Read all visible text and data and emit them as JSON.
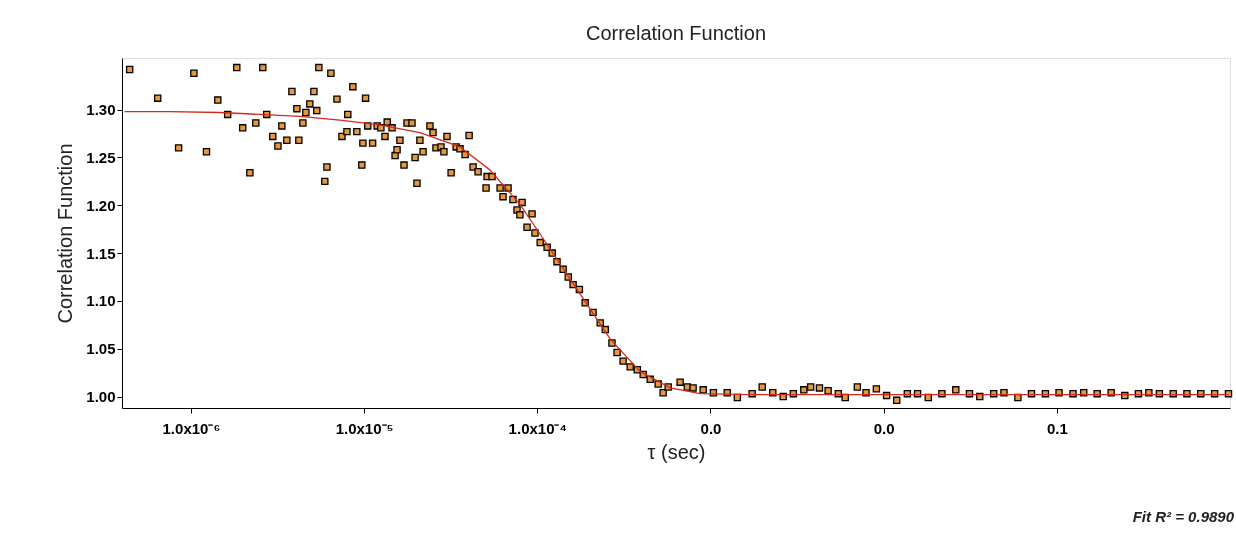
{
  "chart_data": {
    "type": "scatter",
    "title": "Correlation Function",
    "xlabel": "τ (sec)",
    "ylabel": "Correlation Function",
    "annotations": [
      "Fit R² = 0.9890"
    ],
    "log": "x",
    "grid": false,
    "marker": "square",
    "xlim": [
      4e-07,
      1
    ],
    "ylim": [
      0.988,
      1.354
    ],
    "xticks": [
      {
        "value": 1e-06,
        "label": "1.0x10⁻⁶"
      },
      {
        "value": 1e-05,
        "label": "1.0x10⁻⁵"
      },
      {
        "value": 0.0001,
        "label": "1.0x10⁻⁴"
      },
      {
        "value": 0.001,
        "label": "0.0"
      },
      {
        "value": 0.01,
        "label": "0.0"
      },
      {
        "value": 0.1,
        "label": "0.1"
      }
    ],
    "yticks": [
      {
        "value": 1.0,
        "label": "1.00"
      },
      {
        "value": 1.05,
        "label": "1.05"
      },
      {
        "value": 1.1,
        "label": "1.10"
      },
      {
        "value": 1.15,
        "label": "1.15"
      },
      {
        "value": 1.2,
        "label": "1.20"
      },
      {
        "value": 1.25,
        "label": "1.25"
      },
      {
        "value": 1.3,
        "label": "1.30"
      }
    ],
    "series": [
      {
        "color": "#e8983c",
        "x": [
          4.43e-07,
          6.43e-07,
          8.49e-07,
          1.04e-06,
          1.23e-06,
          1.43e-06,
          1.63e-06,
          1.84e-06,
          1.99e-06,
          2.19e-06,
          2.37e-06,
          2.6e-06,
          2.74e-06,
          2.97e-06,
          3.18e-06,
          3.35e-06,
          3.58e-06,
          3.83e-06,
          4.09e-06,
          4.2e-06,
          4.43e-06,
          4.61e-06,
          4.86e-06,
          5.13e-06,
          5.33e-06,
          5.48e-06,
          5.93e-06,
          6.1e-06,
          6.43e-06,
          6.97e-06,
          7.45e-06,
          7.96e-06,
          8.05e-06,
          8.61e-06,
          9.08e-06,
          9.7e-06,
          9.84e-06,
          1.02e-05,
          1.05e-05,
          1.12e-05,
          1.19e-05,
          1.25e-05,
          1.32e-05,
          1.36e-05,
          1.45e-05,
          1.51e-05,
          1.55e-05,
          1.61e-05,
          1.7e-05,
          1.77e-05,
          1.89e-05,
          1.97e-05,
          2.02e-05,
          2.1e-05,
          2.19e-05,
          2.4e-05,
          2.5e-05,
          2.6e-05,
          2.78e-05,
          2.89e-05,
          3.01e-05,
          3.18e-05,
          3.4e-05,
          3.58e-05,
          3.83e-05,
          4.04e-05,
          4.26e-05,
          4.55e-05,
          5.13e-05,
          5.48e-05,
          5.06e-05,
          6.1e-05,
          6.78e-05,
          6.34e-05,
          7.24e-05,
          8.17e-05,
          7.64e-05,
          7.94e-05,
          9.33e-05,
          8.73e-05,
          9.7e-05,
          0.000104,
          0.000114,
          0.000122,
          0.00013,
          0.000141,
          0.000151,
          0.000161,
          0.000175,
          0.000189,
          0.00021,
          0.000231,
          0.000247,
          0.00027,
          0.000289,
          0.000313,
          0.000344,
          0.000378,
          0.000409,
          0.000449,
          0.000499,
          0.000533,
          0.00057,
          0.000668,
          0.000735,
          0.000794,
          0.000908,
          0.00104,
          0.00125,
          0.00143,
          0.00174,
          0.00199,
          0.00229,
          0.00263,
          0.00301,
          0.00346,
          0.00379,
          0.00426,
          0.00478,
          0.00547,
          0.006,
          0.00705,
          0.00791,
          0.00908,
          0.0104,
          0.0119,
          0.0137,
          0.0157,
          0.0181,
          0.0217,
          0.0261,
          0.0313,
          0.0359,
          0.0432,
          0.0495,
          0.0596,
          0.0714,
          0.0859,
          0.103,
          0.124,
          0.143,
          0.171,
          0.206,
          0.247,
          0.296,
          0.34,
          0.391,
          0.47,
          0.564,
          0.678,
          0.815,
          0.98
        ],
        "values": [
          1.342,
          1.312,
          1.26,
          1.338,
          1.256,
          1.31,
          1.295,
          1.344,
          1.281,
          1.234,
          1.286,
          1.344,
          1.295,
          1.272,
          1.262,
          1.283,
          1.268,
          1.319,
          1.301,
          1.268,
          1.286,
          1.297,
          1.306,
          1.319,
          1.299,
          1.344,
          1.225,
          1.24,
          1.338,
          1.311,
          1.272,
          1.277,
          1.295,
          1.324,
          1.277,
          1.242,
          1.265,
          1.312,
          1.283,
          1.265,
          1.283,
          1.281,
          1.272,
          1.287,
          1.281,
          1.252,
          1.258,
          1.268,
          1.242,
          1.286,
          1.286,
          1.25,
          1.223,
          1.268,
          1.256,
          1.283,
          1.276,
          1.26,
          1.261,
          1.256,
          1.272,
          1.234,
          1.261,
          1.259,
          1.253,
          1.273,
          1.24,
          1.235,
          1.23,
          1.23,
          1.218,
          1.218,
          1.218,
          1.209,
          1.206,
          1.203,
          1.195,
          1.19,
          1.191,
          1.177,
          1.171,
          1.161,
          1.156,
          1.15,
          1.141,
          1.133,
          1.125,
          1.117,
          1.112,
          1.098,
          1.088,
          1.077,
          1.07,
          1.056,
          1.046,
          1.037,
          1.031,
          1.028,
          1.023,
          1.018,
          1.013,
          1.004,
          1.01,
          1.015,
          1.01,
          1.009,
          1.007,
          1.004,
          1.004,
          0.999,
          1.003,
          1.01,
          1.004,
          1.0,
          1.003,
          1.007,
          1.01,
          1.009,
          1.006,
          1.003,
          0.999,
          1.01,
          1.004,
          1.008,
          1.001,
          0.996,
          1.003,
          1.003,
          0.999,
          1.003,
          1.007,
          1.003,
          1.0,
          1.003,
          1.004,
          0.999,
          1.003,
          1.003,
          1.004,
          1.003,
          1.004,
          1.003,
          1.004,
          1.001,
          1.003,
          1.004,
          1.003,
          1.003,
          1.003,
          1.003,
          1.003,
          1.003
        ]
      },
      {
        "type": "line",
        "color": "#d42a1e",
        "marker": "none",
        "x": [
          4.14e-07,
          7.53e-07,
          1.47e-06,
          2.5e-06,
          4.26e-06,
          7.24e-06,
          1.23e-05,
          2.1e-05,
          3.58e-05,
          5.33e-05,
          7.94e-05,
          0.000119,
          0.000177,
          0.000264,
          0.000393,
          0.000586,
          0.000873,
          0.0017,
          0.98
        ],
        "values": [
          1.298,
          1.298,
          1.297,
          1.295,
          1.293,
          1.289,
          1.284,
          1.276,
          1.261,
          1.237,
          1.201,
          1.154,
          1.107,
          1.06,
          1.026,
          1.009,
          1.003,
          1.002,
          1.002
        ]
      }
    ]
  }
}
